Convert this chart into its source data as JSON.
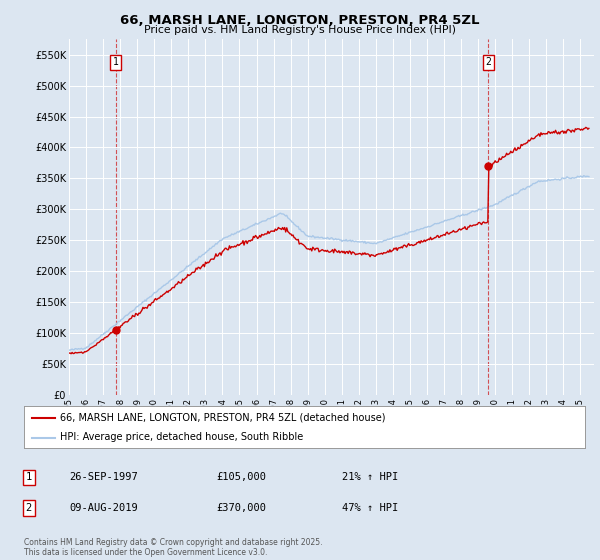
{
  "title": "66, MARSH LANE, LONGTON, PRESTON, PR4 5ZL",
  "subtitle": "Price paid vs. HM Land Registry's House Price Index (HPI)",
  "ylim": [
    0,
    575000
  ],
  "yticks": [
    0,
    50000,
    100000,
    150000,
    200000,
    250000,
    300000,
    350000,
    400000,
    450000,
    500000,
    550000
  ],
  "ytick_labels": [
    "£0",
    "£50K",
    "£100K",
    "£150K",
    "£200K",
    "£250K",
    "£300K",
    "£350K",
    "£400K",
    "£450K",
    "£500K",
    "£550K"
  ],
  "xlim_start": 1995.0,
  "xlim_end": 2025.8,
  "background_color": "#dce6f1",
  "plot_bg_color": "#dce6f1",
  "grid_color": "#ffffff",
  "sale1_date": 1997.74,
  "sale1_price": 105000,
  "sale2_date": 2019.6,
  "sale2_price": 370000,
  "red_line_color": "#cc0000",
  "blue_line_color": "#aac8e8",
  "sale_vline_color": "#cc0000",
  "legend_label_red": "66, MARSH LANE, LONGTON, PRESTON, PR4 5ZL (detached house)",
  "legend_label_blue": "HPI: Average price, detached house, South Ribble",
  "annotation1_date": "26-SEP-1997",
  "annotation1_price": "£105,000",
  "annotation1_hpi": "21% ↑ HPI",
  "annotation2_date": "09-AUG-2019",
  "annotation2_price": "£370,000",
  "annotation2_hpi": "47% ↑ HPI",
  "footer": "Contains HM Land Registry data © Crown copyright and database right 2025.\nThis data is licensed under the Open Government Licence v3.0."
}
